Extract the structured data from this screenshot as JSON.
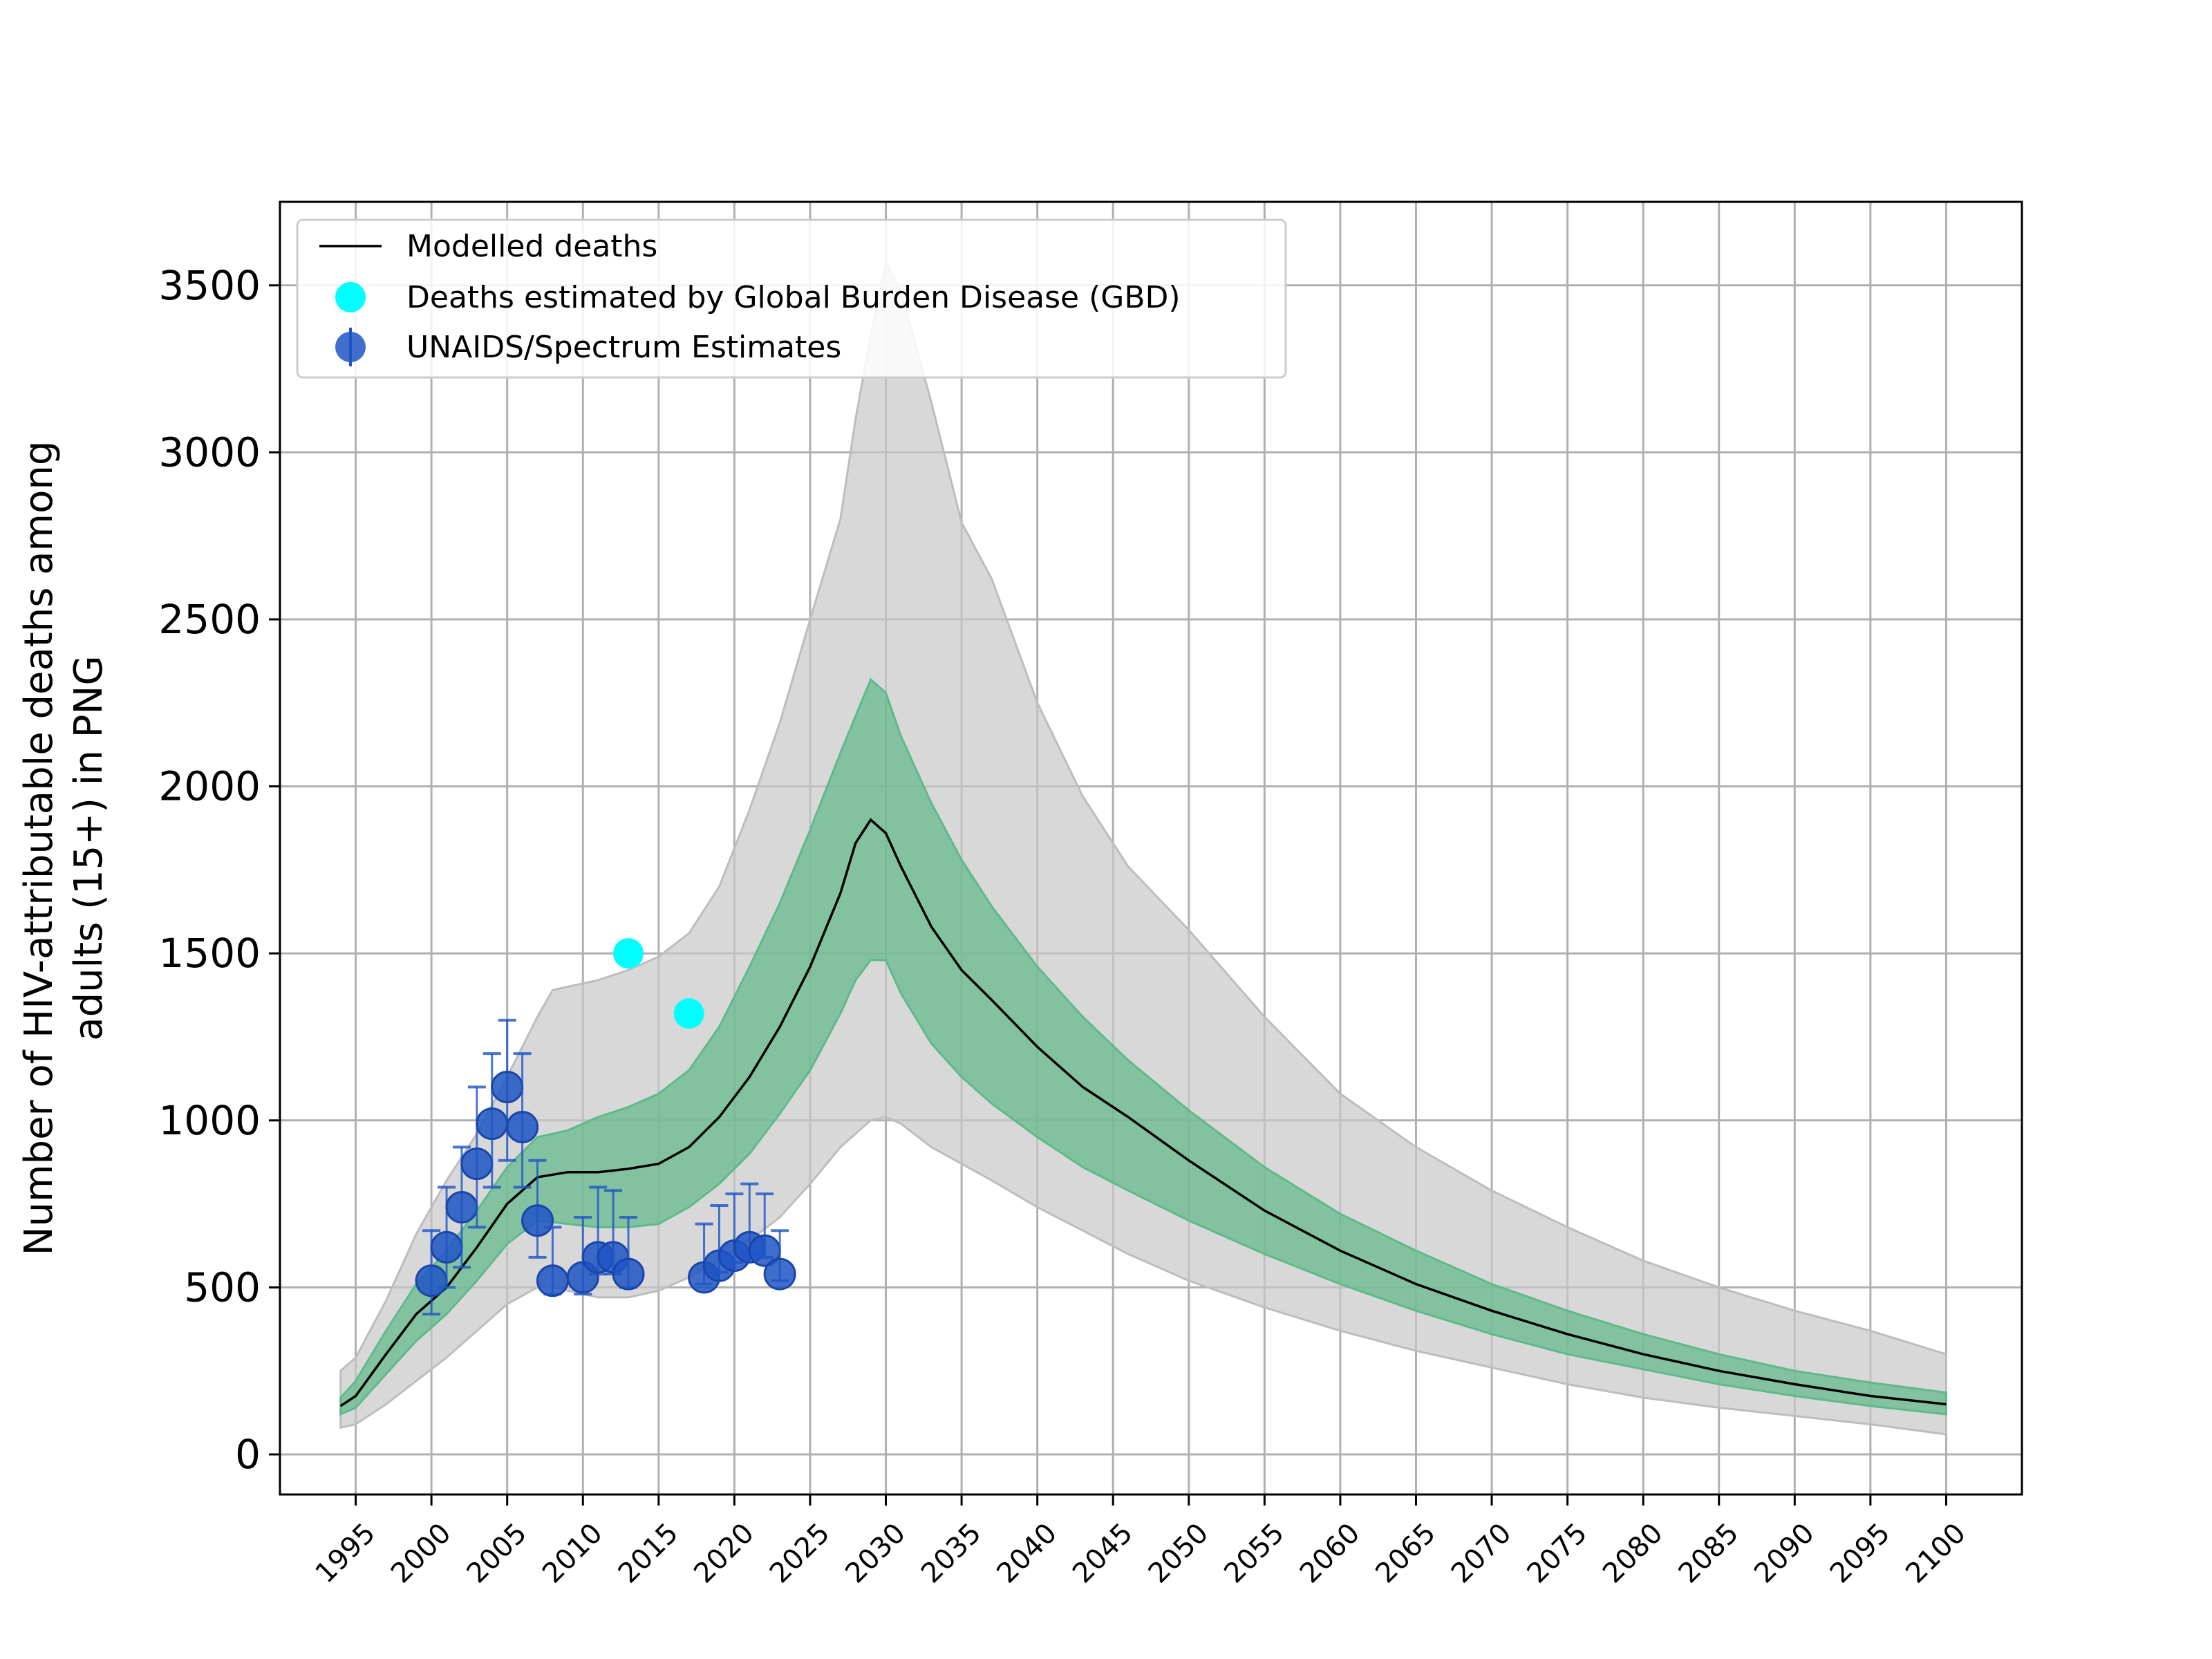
{
  "chart_data": {
    "type": "line",
    "title": "",
    "xlabel": "",
    "ylabel_lines": [
      "Number of HIV-attributable deaths among",
      "adults (15+) in PNG"
    ],
    "xlim": [
      1990,
      2105
    ],
    "ylim": [
      -120,
      3750
    ],
    "grid": true,
    "legend_position": "top-left",
    "x_ticks": [
      1995,
      2000,
      2005,
      2010,
      2015,
      2020,
      2025,
      2030,
      2035,
      2040,
      2045,
      2050,
      2055,
      2060,
      2065,
      2070,
      2075,
      2080,
      2085,
      2090,
      2095,
      2100
    ],
    "x_tick_labels": [
      "1995",
      "2000",
      "2005",
      "2010",
      "2015",
      "2020",
      "2025",
      "2030",
      "2035",
      "2040",
      "2045",
      "2050",
      "2055",
      "2060",
      "2065",
      "2070",
      "2075",
      "2080",
      "2085",
      "2090",
      "2095",
      "2100"
    ],
    "y_ticks": [
      0,
      500,
      1000,
      1500,
      2000,
      2500,
      3000,
      3500
    ],
    "y_tick_labels": [
      "0",
      "500",
      "1000",
      "1500",
      "2000",
      "2500",
      "3000",
      "3500"
    ],
    "colors": {
      "model_line": "#000000",
      "inner_band": "#5fb98a",
      "outer_band": "#c8c8c8",
      "gbd": "#00ffff",
      "unaids": "#1f55c4",
      "grid": "#b0b0b0"
    },
    "legend": [
      {
        "label": "Modelled deaths",
        "marker": "line"
      },
      {
        "label": "Deaths estimated by Global Burden Disease (GBD)",
        "marker": "circle-cyan"
      },
      {
        "label": "UNAIDS/Spectrum Estimates",
        "marker": "circle-errorbar"
      }
    ],
    "model_series": {
      "name": "Modelled deaths",
      "x": [
        1994,
        1995,
        1997,
        1999,
        2001,
        2003,
        2005,
        2007,
        2009,
        2011,
        2013,
        2015,
        2017,
        2019,
        2021,
        2023,
        2025,
        2027,
        2028,
        2029,
        2030,
        2031,
        2033,
        2035,
        2037,
        2040,
        2043,
        2046,
        2050,
        2055,
        2060,
        2065,
        2070,
        2075,
        2080,
        2085,
        2090,
        2095,
        2100
      ],
      "y": [
        145,
        175,
        300,
        420,
        500,
        620,
        750,
        830,
        845,
        845,
        855,
        870,
        920,
        1010,
        1130,
        1280,
        1460,
        1680,
        1830,
        1900,
        1860,
        1760,
        1580,
        1450,
        1360,
        1220,
        1100,
        1010,
        880,
        730,
        610,
        510,
        430,
        360,
        300,
        250,
        210,
        175,
        150
      ]
    },
    "inner_band": {
      "x": [
        1994,
        1995,
        1997,
        1999,
        2001,
        2003,
        2005,
        2007,
        2009,
        2011,
        2013,
        2015,
        2017,
        2019,
        2021,
        2023,
        2025,
        2027,
        2028,
        2029,
        2030,
        2031,
        2033,
        2035,
        2037,
        2040,
        2043,
        2046,
        2050,
        2055,
        2060,
        2065,
        2070,
        2075,
        2080,
        2085,
        2090,
        2095,
        2100
      ],
      "upper": [
        170,
        220,
        370,
        510,
        610,
        730,
        860,
        950,
        970,
        1010,
        1040,
        1080,
        1150,
        1280,
        1460,
        1650,
        1870,
        2100,
        2210,
        2320,
        2280,
        2150,
        1950,
        1780,
        1640,
        1460,
        1310,
        1180,
        1030,
        860,
        720,
        610,
        510,
        430,
        360,
        300,
        250,
        215,
        185
      ],
      "lower": [
        120,
        140,
        240,
        340,
        420,
        520,
        630,
        700,
        690,
        680,
        680,
        690,
        740,
        810,
        900,
        1020,
        1150,
        1320,
        1420,
        1480,
        1480,
        1380,
        1230,
        1130,
        1050,
        950,
        860,
        790,
        700,
        600,
        510,
        430,
        360,
        300,
        255,
        210,
        175,
        145,
        120
      ]
    },
    "outer_band": {
      "x": [
        1994,
        1995,
        1997,
        1999,
        2001,
        2003,
        2005,
        2007,
        2008,
        2009,
        2011,
        2013,
        2015,
        2017,
        2019,
        2021,
        2023,
        2025,
        2027,
        2028,
        2029,
        2030,
        2031,
        2033,
        2035,
        2037,
        2040,
        2043,
        2046,
        2050,
        2055,
        2060,
        2065,
        2070,
        2075,
        2080,
        2085,
        2090,
        2095,
        2100
      ],
      "upper": [
        250,
        290,
        460,
        660,
        820,
        960,
        1130,
        1310,
        1390,
        1400,
        1420,
        1450,
        1490,
        1560,
        1700,
        1930,
        2190,
        2500,
        2800,
        3100,
        3350,
        3570,
        3480,
        3150,
        2790,
        2620,
        2250,
        1970,
        1760,
        1570,
        1310,
        1080,
        920,
        790,
        680,
        580,
        500,
        430,
        370,
        300
      ],
      "lower": [
        80,
        90,
        150,
        220,
        290,
        370,
        450,
        500,
        500,
        490,
        470,
        470,
        490,
        530,
        580,
        640,
        710,
        810,
        920,
        960,
        1000,
        1010,
        990,
        920,
        870,
        820,
        740,
        670,
        600,
        520,
        440,
        370,
        310,
        260,
        210,
        170,
        140,
        115,
        90,
        60
      ]
    },
    "gbd_points": {
      "name": "Deaths estimated by Global Burden Disease (GBD)",
      "x": [
        2013,
        2017
      ],
      "y": [
        1500,
        1320
      ]
    },
    "unaids_points": {
      "name": "UNAIDS/Spectrum Estimates",
      "x": [
        2000,
        2001,
        2002,
        2003,
        2004,
        2005,
        2006,
        2007,
        2008,
        2010,
        2011,
        2012,
        2013,
        2018,
        2019,
        2020,
        2021,
        2022,
        2023
      ],
      "y": [
        520,
        620,
        740,
        870,
        990,
        1100,
        980,
        700,
        520,
        530,
        590,
        590,
        540,
        530,
        565,
        595,
        620,
        610,
        540
      ],
      "lower": [
        420,
        500,
        560,
        680,
        800,
        880,
        800,
        590,
        480,
        480,
        540,
        540,
        500,
        510,
        545,
        575,
        600,
        590,
        520
      ],
      "upper": [
        670,
        800,
        920,
        1100,
        1200,
        1300,
        1200,
        880,
        680,
        710,
        800,
        790,
        710,
        690,
        745,
        780,
        810,
        780,
        670
      ]
    }
  }
}
